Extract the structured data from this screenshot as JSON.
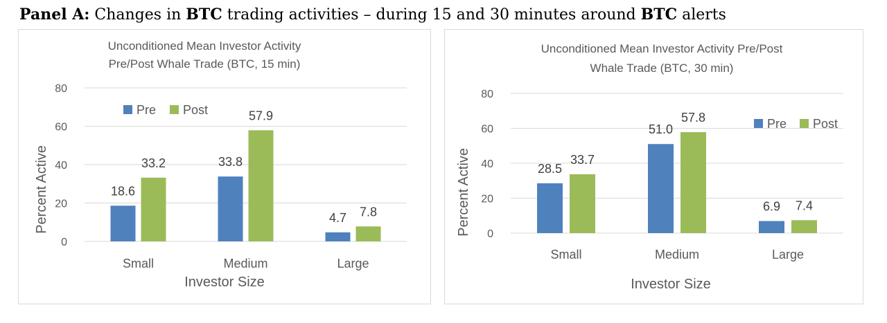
{
  "panel": {
    "label": "Panel A:",
    "text_1": " Changes in ",
    "bold_1": "BTC",
    "text_2": " trading activities – during 15 and 30 minutes around ",
    "bold_2": "BTC",
    "text_3": " alerts"
  },
  "colors": {
    "pre": "#4f81bd",
    "post": "#9bbb59"
  },
  "chart_data": [
    {
      "type": "bar",
      "title_lines": [
        "Unconditioned Mean Investor Activity",
        "Pre/Post Whale Trade (BTC, 15 min)"
      ],
      "xlabel": "Investor Size",
      "ylabel": "Percent Active",
      "ylim": [
        0,
        80
      ],
      "yticks": [
        0,
        20,
        40,
        60,
        80
      ],
      "grid": true,
      "legend_position": "top-left",
      "categories": [
        "Small",
        "Medium",
        "Large"
      ],
      "series": [
        {
          "name": "Pre",
          "values": [
            18.6,
            33.8,
            4.7
          ],
          "labels": [
            "18.6",
            "33.8",
            "4.7"
          ]
        },
        {
          "name": "Post",
          "values": [
            33.2,
            57.9,
            7.8
          ],
          "labels": [
            "33.2",
            "57.9",
            "7.8"
          ]
        }
      ]
    },
    {
      "type": "bar",
      "title_lines": [
        "Unconditioned Mean Investor Activity Pre/Post",
        "Whale Trade (BTC, 30 min)"
      ],
      "xlabel": "Investor Size",
      "ylabel": "Percent Active",
      "ylim": [
        0,
        80
      ],
      "yticks": [
        0,
        20,
        40,
        60,
        80
      ],
      "grid": true,
      "legend_position": "right",
      "categories": [
        "Small",
        "Medium",
        "Large"
      ],
      "series": [
        {
          "name": "Pre",
          "values": [
            28.5,
            51.0,
            6.9
          ],
          "labels": [
            "28.5",
            "51.0",
            "6.9"
          ]
        },
        {
          "name": "Post",
          "values": [
            33.7,
            57.8,
            7.4
          ],
          "labels": [
            "33.7",
            "57.8",
            "7.4"
          ]
        }
      ]
    }
  ]
}
